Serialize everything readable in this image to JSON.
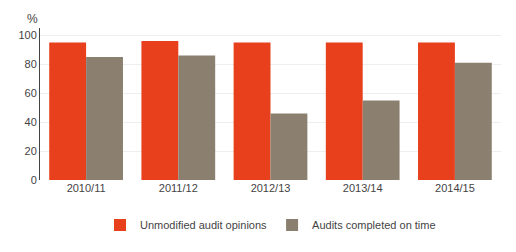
{
  "chart_data": {
    "type": "bar",
    "ylabel": "%",
    "categories": [
      "2010/11",
      "2011/12",
      "2012/13",
      "2013/14",
      "2014/15"
    ],
    "series": [
      {
        "name": "Unmodified audit opinions",
        "color": "#E8401C",
        "values": [
          95,
          96,
          95,
          95,
          95
        ]
      },
      {
        "name": "Audits completed on time",
        "color": "#8B8070",
        "values": [
          85,
          86,
          46,
          55,
          81
        ]
      }
    ],
    "ylim": [
      0,
      105
    ],
    "yticks": [
      0,
      20,
      40,
      60,
      80,
      100
    ],
    "grid": true,
    "legend": "bottom"
  }
}
